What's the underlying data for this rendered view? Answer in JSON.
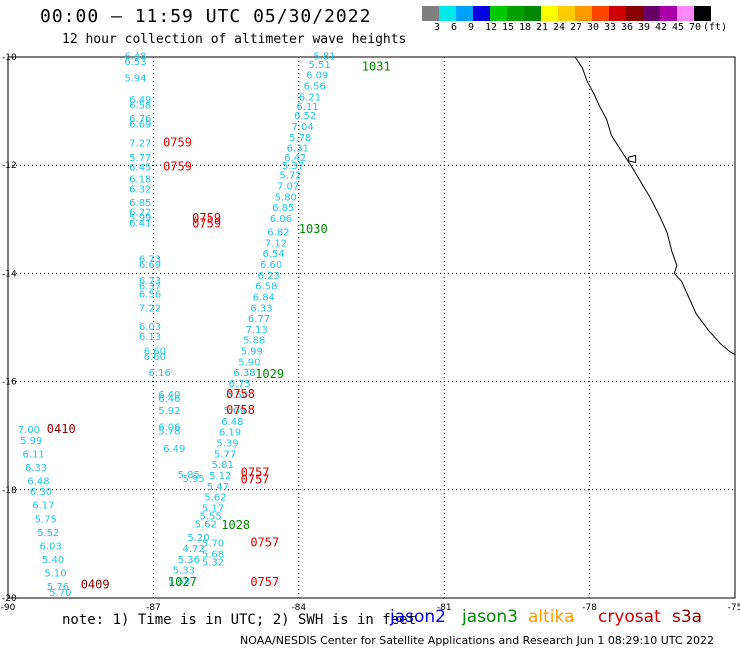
{
  "title": "00:00 – 11:59 UTC 05/30/2022",
  "subtitle": "12 hour collection of altimeter wave heights",
  "colorbar": {
    "unit": "(ft)",
    "labels": [
      "3",
      "6",
      "9",
      "12",
      "15",
      "18",
      "21",
      "24",
      "27",
      "30",
      "33",
      "36",
      "39",
      "42",
      "45",
      "70"
    ],
    "colors": [
      "#7f7f7f",
      "#00e8e8",
      "#00a0ff",
      "#0000e0",
      "#00c800",
      "#00a000",
      "#008800",
      "#ffff00",
      "#ffcc00",
      "#ff9900",
      "#ff4400",
      "#cc0000",
      "#880000",
      "#660066",
      "#aa00aa",
      "#ff88ff",
      "#000000"
    ]
  },
  "map": {
    "lat_labels": [
      "-10",
      "-12",
      "-14",
      "-16",
      "-18",
      "-20"
    ],
    "lon_labels": [
      "-90",
      "-87",
      "-84",
      "-81",
      "-78",
      "-75"
    ],
    "grid": true
  },
  "swh_color": "#22c8e0",
  "time_color_red": "#e00000",
  "time_color_green": "#008800",
  "time_color_darkred": "#880000",
  "tracks": [
    {
      "time": "1031",
      "time_color": "green",
      "time_pos": [
        -82.7,
        -10.25
      ],
      "points": [
        [
          "5.81",
          -83.7,
          -10.05
        ],
        [
          "5.51",
          -83.8,
          -10.2
        ],
        [
          "6.09",
          -83.85,
          -10.4
        ],
        [
          "6.56",
          -83.9,
          -10.6
        ],
        [
          "6.21",
          -84.0,
          -10.8
        ],
        [
          "6.11",
          -84.05,
          -10.98
        ],
        [
          "6.52",
          -84.1,
          -11.15
        ],
        [
          "7.04",
          -84.15,
          -11.35
        ],
        [
          "5.78",
          -84.2,
          -11.55
        ],
        [
          "6.31",
          -84.25,
          -11.75
        ],
        [
          "6.42",
          -84.3,
          -11.92
        ],
        [
          "5.37",
          -84.35,
          -12.07
        ],
        [
          "5.72",
          -84.4,
          -12.25
        ],
        [
          "7.07",
          -84.45,
          -12.45
        ],
        [
          "5.80",
          -84.5,
          -12.65
        ],
        [
          "6.85",
          -84.55,
          -12.85
        ],
        [
          "6.06",
          -84.6,
          -13.05
        ]
      ]
    },
    {
      "time": "1030",
      "time_color": "green",
      "time_pos": [
        -84.0,
        -13.25
      ],
      "points": [
        [
          "6.82",
          -84.65,
          -13.3
        ],
        [
          "7.12",
          -84.7,
          -13.5
        ],
        [
          "6.54",
          -84.75,
          -13.7
        ],
        [
          "6.60",
          -84.8,
          -13.9
        ],
        [
          "6.23",
          -84.85,
          -14.1
        ],
        [
          "6.58",
          -84.9,
          -14.3
        ],
        [
          "6.84",
          -84.95,
          -14.5
        ],
        [
          "6.33",
          -85.0,
          -14.7
        ],
        [
          "6.77",
          -85.05,
          -14.9
        ],
        [
          "7.13",
          -85.1,
          -15.1
        ],
        [
          "5.88",
          -85.15,
          -15.3
        ],
        [
          "5.99",
          -85.2,
          -15.5
        ],
        [
          "5.90",
          -85.25,
          -15.7
        ],
        [
          "6.38",
          -85.35,
          -15.9
        ]
      ]
    },
    {
      "time": "1029",
      "time_color": "green",
      "time_pos": [
        -84.9,
        -15.93
      ],
      "points": [
        [
          "6.75",
          -85.45,
          -16.1
        ],
        [
          "6.50",
          -85.5,
          -16.3
        ],
        [
          "5.09",
          -85.55,
          -16.6
        ],
        [
          "6.48",
          -85.6,
          -16.8
        ],
        [
          "6.19",
          -85.65,
          -17.0
        ],
        [
          "5.39",
          -85.7,
          -17.2
        ],
        [
          "5.77",
          -85.75,
          -17.4
        ],
        [
          "5.81",
          -85.8,
          -17.6
        ],
        [
          "5.12",
          -85.85,
          -17.8
        ],
        [
          "5.47",
          -85.9,
          -18.0
        ],
        [
          "5.62",
          -85.95,
          -18.2
        ],
        [
          "5.17",
          -86.0,
          -18.4
        ],
        [
          "5.55",
          -86.05,
          -18.55
        ],
        [
          "5.62",
          -86.15,
          -18.7
        ]
      ]
    },
    {
      "time": "1028",
      "time_color": "green",
      "time_pos": [
        -85.6,
        -18.72
      ],
      "points": [
        [
          "5.20",
          -86.3,
          -18.95
        ],
        [
          "4.72",
          -86.4,
          -19.15
        ],
        [
          "5.36",
          -86.5,
          -19.35
        ],
        [
          "5.33",
          -86.6,
          -19.55
        ],
        [
          "5.58",
          -86.7,
          -19.75
        ]
      ]
    },
    {
      "time": "1027",
      "time_color": "green",
      "time_pos": [
        -86.7,
        -19.78
      ],
      "points": [
        [
          "5.70",
          -86.0,
          -19.05
        ],
        [
          "5.68",
          -86.0,
          -19.25
        ],
        [
          "5.32",
          -86.0,
          -19.4
        ]
      ]
    },
    {
      "time": "0759",
      "time_color": "red",
      "time_pos": [
        -86.8,
        -11.65
      ],
      "points": [
        [
          "6.48",
          -87.6,
          -10.05
        ],
        [
          "6.53",
          -87.6,
          -10.15
        ],
        [
          "5.94",
          -87.6,
          -10.45
        ],
        [
          "6.49",
          -87.5,
          -10.85
        ],
        [
          "6.58",
          -87.5,
          -10.95
        ],
        [
          "6.76",
          -87.5,
          -11.2
        ],
        [
          "6.69",
          -87.5,
          -11.3
        ],
        [
          "7.27",
          -87.5,
          -11.65
        ],
        [
          "5.77",
          -87.5,
          -11.92
        ],
        [
          "6.45",
          -87.5,
          -12.1
        ],
        [
          "6.18",
          -87.5,
          -12.32
        ],
        [
          "6.32",
          -87.5,
          -12.5
        ]
      ]
    },
    {
      "time": "0759",
      "time_color": "red",
      "time_pos": [
        -86.8,
        -12.1
      ],
      "points": []
    },
    {
      "time": "0759",
      "time_color": "red",
      "time_pos": [
        -86.2,
        -13.05
      ],
      "points": [
        [
          "6.85",
          -87.5,
          -12.75
        ],
        [
          "6.22",
          -87.5,
          -12.93
        ],
        [
          "5.99",
          -87.5,
          -13.03
        ],
        [
          "6.41",
          -87.5,
          -13.13
        ],
        [
          "6.73",
          -87.3,
          -13.8
        ],
        [
          "6.69",
          -87.3,
          -13.9
        ],
        [
          "6.73",
          -87.3,
          -14.2
        ],
        [
          "6.37",
          -87.3,
          -14.3
        ],
        [
          "6.56",
          -87.3,
          -14.45
        ],
        [
          "7.22",
          -87.3,
          -14.7
        ],
        [
          "6.03",
          -87.3,
          -15.05
        ],
        [
          "6.13",
          -87.3,
          -15.23
        ],
        [
          "6.60",
          -87.2,
          -15.5
        ],
        [
          "6.60",
          -87.2,
          -15.6
        ]
      ]
    },
    {
      "time": "0759",
      "time_color": "red",
      "time_pos": [
        -86.2,
        -13.15
      ],
      "points": []
    },
    {
      "time": "0758",
      "time_color": "red",
      "time_pos": [
        -85.5,
        -16.3
      ],
      "points": [
        [
          "6.16",
          -87.1,
          -15.9
        ],
        [
          "6.40",
          -86.9,
          -16.3
        ],
        [
          "6.46",
          -86.9,
          -16.38
        ],
        [
          "5.92",
          -86.9,
          -16.6
        ],
        [
          "6.06",
          -86.9,
          -16.9
        ],
        [
          "5.78",
          -86.9,
          -16.98
        ],
        [
          "6.49",
          -86.8,
          -17.3
        ],
        [
          "5.85",
          -86.5,
          -17.78
        ],
        [
          "5.95",
          -86.4,
          -17.86
        ]
      ]
    },
    {
      "time": "0758",
      "time_color": "red",
      "time_pos": [
        -85.5,
        -16.6
      ],
      "points": []
    },
    {
      "time": "0757",
      "time_color": "red",
      "time_pos": [
        -85.2,
        -17.75
      ],
      "points": []
    },
    {
      "time": "0757",
      "time_color": "red",
      "time_pos": [
        -85.2,
        -17.88
      ],
      "points": []
    },
    {
      "time": "0757",
      "time_color": "red",
      "time_pos": [
        -85.0,
        -19.05
      ],
      "points": []
    },
    {
      "time": "0757",
      "time_color": "red",
      "time_pos": [
        -85.0,
        -19.78
      ],
      "points": []
    },
    {
      "time": "0410",
      "time_color": "darkred",
      "time_pos": [
        -89.2,
        -16.95
      ],
      "points": [
        [
          "7.00",
          -89.8,
          -16.95
        ],
        [
          "5.99",
          -89.75,
          -17.15
        ],
        [
          "6.11",
          -89.7,
          -17.4
        ],
        [
          "6.33",
          -89.65,
          -17.65
        ],
        [
          "6.48",
          -89.6,
          -17.9
        ],
        [
          "6.30",
          -89.55,
          -18.1
        ],
        [
          "6.17",
          -89.5,
          -18.35
        ],
        [
          "5.75",
          -89.45,
          -18.6
        ],
        [
          "5.52",
          -89.4,
          -18.85
        ],
        [
          "6.03",
          -89.35,
          -19.1
        ],
        [
          "5.40",
          -89.3,
          -19.35
        ],
        [
          "5.10",
          -89.25,
          -19.6
        ],
        [
          "5.76",
          -89.2,
          -19.85
        ],
        [
          "5.70",
          -89.15,
          -19.96
        ]
      ]
    },
    {
      "time": "0409",
      "time_color": "darkred",
      "time_pos": [
        -88.5,
        -19.82
      ],
      "points": []
    }
  ],
  "footer_note": "note: 1) Time is in UTC; 2) SWH is in feet",
  "legend": [
    {
      "label": "jason2",
      "color": "#0000e0"
    },
    {
      "label": "jason3",
      "color": "#008800"
    },
    {
      "label": "altika",
      "color": "#ff9900"
    },
    {
      "label": "cryosat",
      "color": "#cc0000"
    },
    {
      "label": "s3a",
      "color": "#880000"
    }
  ],
  "credit": "NOAA/NESDIS Center for Satellite Applications and Research   Jun  1 08:29:10 UTC 2022"
}
